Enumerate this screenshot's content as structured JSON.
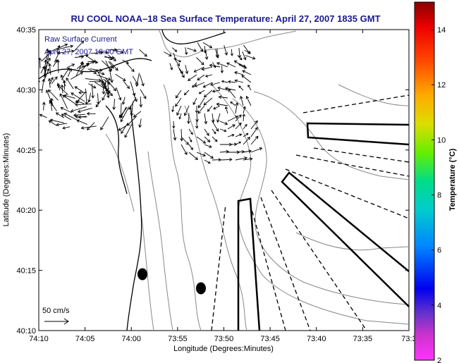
{
  "title": "RU COOL  NOAA–18  Sea Surface Temperature:  April 27, 2007 1835 GMT",
  "legend": {
    "line1": "Raw Surface Current",
    "line2": "April 27, 2007 18:00 GMT"
  },
  "axes": {
    "xlabel": "Longitude (Degrees:Minutes)",
    "ylabel": "Latitude (Degrees:Minutes)",
    "x_ticks": [
      "74:10",
      "74:05",
      "74:00",
      "73:55",
      "73:50",
      "73:45",
      "73:40",
      "73:35",
      "73:3"
    ],
    "y_ticks": [
      "40:35",
      "40:30",
      "40:25",
      "40:20",
      "40:15",
      "40:10"
    ]
  },
  "colorbar": {
    "label": "Temperature (°C)",
    "ticks": [
      "14",
      "12",
      "10",
      "8",
      "6",
      "4",
      "2"
    ],
    "range": [
      2,
      15
    ]
  },
  "scale_bar": {
    "label": "50 cm/s"
  },
  "colors": {
    "title": "#1a1a8c",
    "contour": "#888888",
    "coastline": "#000000"
  },
  "icons": {
    "current_vectors": "arrow-field",
    "stations": "filled-ellipse"
  }
}
